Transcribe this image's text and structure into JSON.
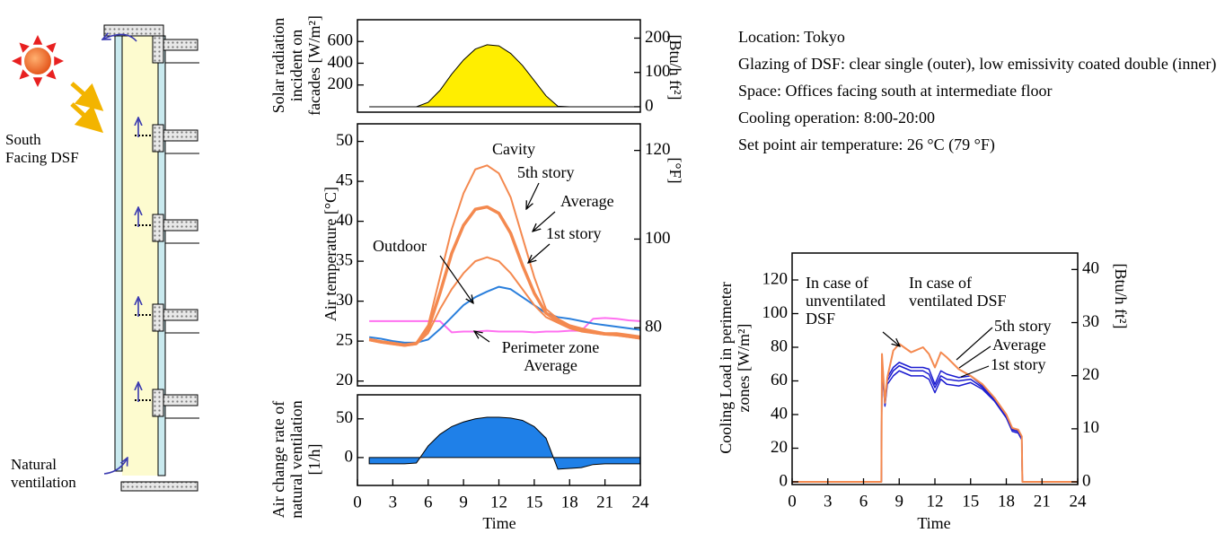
{
  "diagram": {
    "labels": [
      "South Facing DSF",
      "Natural ventilation"
    ]
  },
  "notes": [
    "Location: Tokyo",
    "Glazing of DSF: clear single (outer), low emissivity coated double (inner)",
    "Space: Offices facing south at intermediate floor",
    "Cooling operation: 8:00-20:00",
    "Set point air temperature: 26 °C (79 °F)"
  ],
  "chart_data": [
    {
      "type": "area",
      "ylabel": "Solar radiation incident on facades [W/m²]",
      "y2label": "[Btu/h ft²]",
      "x": [
        1,
        2,
        3,
        4,
        5,
        6,
        7,
        8,
        9,
        10,
        11,
        12,
        13,
        14,
        15,
        16,
        17,
        18,
        19,
        20,
        21,
        22,
        23,
        24
      ],
      "values": [
        0,
        0,
        0,
        0,
        0,
        40,
        150,
        300,
        430,
        530,
        570,
        560,
        490,
        380,
        240,
        100,
        5,
        0,
        0,
        0,
        0,
        0,
        0,
        0
      ],
      "color": "#ffee00",
      "xlim": [
        0,
        24
      ],
      "ylim": [
        -50,
        800
      ],
      "yticks": [
        200,
        400,
        600
      ],
      "y2lim": [
        -15.85,
        253.6
      ],
      "y2ticks": [
        0,
        100,
        200
      ]
    },
    {
      "type": "line",
      "ylabel": "Air temperature [°C]",
      "y2label": "[°F]",
      "annotations": [
        "Cavity"
      ],
      "x": [
        1,
        2,
        3,
        4,
        5,
        6,
        7,
        8,
        9,
        10,
        11,
        12,
        13,
        14,
        15,
        16,
        17,
        18,
        19,
        20,
        21,
        22,
        23,
        24
      ],
      "series": [
        {
          "name": "5th story",
          "color": "#f4894f",
          "values": [
            25.3,
            25,
            24.8,
            24.6,
            24.8,
            27,
            33,
            39,
            43.5,
            46.5,
            47,
            46,
            43,
            38,
            33,
            29,
            27.8,
            27,
            26.6,
            26.3,
            26,
            26,
            25.8,
            25.6
          ]
        },
        {
          "name": "Average",
          "color": "#f4894f",
          "values": [
            25.2,
            24.9,
            24.7,
            24.5,
            24.7,
            26.5,
            31,
            36,
            39.5,
            41.5,
            41.8,
            41,
            38.5,
            34.5,
            31,
            28.5,
            27.5,
            26.8,
            26.4,
            26.1,
            25.9,
            25.8,
            25.6,
            25.4
          ]
        },
        {
          "name": "1st story",
          "color": "#f4894f",
          "values": [
            25.1,
            24.8,
            24.6,
            24.4,
            24.6,
            26,
            29,
            31.5,
            33.5,
            35,
            35.5,
            35,
            33.5,
            31.5,
            29.5,
            28,
            27.3,
            26.6,
            26.2,
            26,
            25.8,
            25.7,
            25.5,
            25.3
          ]
        },
        {
          "name": "Outdoor",
          "color": "#2a7fdc",
          "values": [
            25.5,
            25.3,
            25,
            24.8,
            24.8,
            25.2,
            26.5,
            28,
            29.5,
            30.5,
            31.2,
            31.8,
            31.5,
            30.5,
            29.5,
            28.5,
            28,
            27.8,
            27.5,
            27.2,
            27,
            26.8,
            26.6,
            26.4
          ]
        },
        {
          "name": "Perimeter zone Average",
          "color": "#ff70f0",
          "values": [
            27.5,
            27.5,
            27.5,
            27.5,
            27.5,
            27.5,
            27.5,
            26.1,
            26.2,
            26.2,
            26.3,
            26.2,
            26.2,
            26.2,
            26.1,
            26.2,
            26.2,
            26.3,
            26.3,
            27.8,
            27.9,
            27.8,
            27.6,
            27.5
          ]
        }
      ],
      "xlim": [
        0,
        24
      ],
      "ylim": [
        19.4,
        52.2
      ],
      "yticks": [
        20,
        25,
        30,
        35,
        40,
        45,
        50
      ],
      "y2lim": [
        66.9,
        126
      ],
      "y2ticks": [
        80,
        100,
        120
      ]
    },
    {
      "type": "area",
      "ylabel": "Air change rate of natural ventilation [1/h]",
      "xlabel": "Time",
      "x": [
        1,
        2,
        3,
        4,
        5,
        6,
        7,
        8,
        9,
        10,
        11,
        12,
        13,
        14,
        15,
        16,
        17,
        18,
        19,
        20,
        21,
        22,
        23,
        24
      ],
      "values": [
        -8,
        -8,
        -8,
        -8,
        -7,
        15,
        30,
        40,
        46,
        50,
        52,
        52,
        51,
        48,
        40,
        25,
        -15,
        -14,
        -13,
        -9,
        -8,
        -8,
        -8,
        -8
      ],
      "color": "#1f80e8",
      "xlim": [
        0,
        24
      ],
      "xticks": [
        0,
        3,
        6,
        9,
        12,
        15,
        18,
        21,
        24
      ],
      "ylim": [
        -36,
        81
      ],
      "yticks": [
        0,
        50
      ]
    },
    {
      "type": "line",
      "ylabel": "Cooling Load in perimeter zones [W/m²]",
      "y2label": "[Btu/h ft²]",
      "xlabel": "Time",
      "annotations": [
        "In case of unventilated DSF",
        "In case of ventilated DSF"
      ],
      "x": [
        0,
        7.5,
        7.55,
        7.8,
        8,
        8.5,
        9,
        10,
        11,
        11.5,
        12,
        12.5,
        13,
        14,
        15,
        16,
        17,
        18,
        18.5,
        19,
        19.3,
        19.35,
        24
      ],
      "series": [
        {
          "color": "#f4894f",
          "values": [
            0,
            0,
            76,
            47,
            62,
            78,
            82,
            77,
            80,
            76,
            68,
            77,
            74,
            67,
            63,
            58,
            50,
            40,
            32,
            31,
            27,
            0,
            0
          ]
        },
        {
          "name": "5th story",
          "color": "#1a1ad0",
          "values": [
            0,
            0,
            71,
            47,
            62,
            68,
            71,
            68,
            68,
            67,
            58,
            66,
            64,
            62,
            63,
            57,
            50,
            40,
            32,
            30,
            27,
            0,
            0
          ]
        },
        {
          "name": "Average",
          "color": "#1a1ad0",
          "values": [
            0,
            0,
            70,
            46,
            60,
            66,
            69,
            66,
            66,
            64,
            56,
            63,
            61,
            60,
            61,
            56,
            49,
            39,
            31,
            30,
            26,
            0,
            0
          ]
        },
        {
          "name": "1st story",
          "color": "#1a1ad0",
          "values": [
            0,
            0,
            68,
            45,
            58,
            63,
            66,
            63,
            63,
            61,
            53,
            61,
            58,
            57,
            59,
            55,
            48,
            38,
            30,
            29,
            25,
            0,
            0
          ]
        }
      ],
      "xlim": [
        0,
        24
      ],
      "xticks": [
        0,
        3,
        6,
        9,
        12,
        15,
        18,
        21,
        24
      ],
      "ylim": [
        -1.6,
        136
      ],
      "yticks": [
        0,
        20,
        40,
        60,
        80,
        100,
        120
      ],
      "y2lim": [
        -0.5,
        43.1
      ],
      "y2ticks": [
        0,
        10,
        20,
        30,
        40
      ]
    }
  ]
}
